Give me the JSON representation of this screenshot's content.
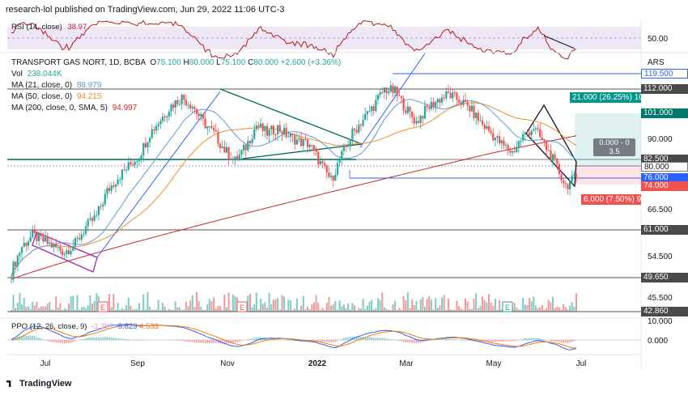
{
  "header": {
    "text": "research-lol published on TradingView.com, Jun 29, 2022 11:06 UTC-3"
  },
  "rsi": {
    "label": "RSI (14, close)",
    "value": "38.97",
    "level_label": "50.00",
    "color": "#b71c1c"
  },
  "main": {
    "symbol": "TRANSPORT GAS NORT, 1D, BCBA",
    "ohlc": {
      "o_label": "O",
      "o": "75.100",
      "h_label": "H",
      "h": "80.000",
      "l_label": "L",
      "l": "75.100",
      "c_label": "C",
      "c": "80.000",
      "chg": "+2.600 (+3.36%)"
    },
    "vol": {
      "label": "Vol",
      "value": "238.044K",
      "color": "#26a69a"
    },
    "ma21": {
      "label": "MA (21, close, 0)",
      "value": "88.979",
      "color": "#5b9bd5"
    },
    "ma50": {
      "label": "MA (50, close, 0)",
      "value": "94.215",
      "color": "#f28c28"
    },
    "ma200": {
      "label": "MA (200, close, 0, SMA, 5)",
      "value": "94.997",
      "color": "#c62828"
    },
    "currency": "ARS"
  },
  "price_axis": {
    "ticks": [
      "90.000",
      "66.500",
      "54.500",
      "45.500"
    ],
    "levels": [
      {
        "value": "119.500",
        "style": "blue"
      },
      {
        "value": "112.000",
        "style": "dark"
      },
      {
        "value": "101.000",
        "style": "teal"
      },
      {
        "value": "82.500",
        "style": "dark"
      },
      {
        "value": "80.000",
        "style": "outline"
      },
      {
        "value": "76.000",
        "style": "blue"
      },
      {
        "value": "74.000",
        "style": "red"
      },
      {
        "value": "61.000",
        "style": "dark"
      },
      {
        "value": "49.650",
        "style": "dark"
      },
      {
        "value": "42.860",
        "style": "dark"
      }
    ]
  },
  "position_tool": {
    "target_label": "21.000 (26.25%) 100",
    "stop_label": "6.000 (7.50%) 99",
    "ratio_line1": "0.000 - 0",
    "ratio_line2": "3.5"
  },
  "ppo": {
    "label": "PPO (12, 26, close, 9)",
    "v1": "-1.297",
    "v2": "-5.829",
    "v3": "4.533",
    "axis": [
      "10.000",
      "0.000"
    ]
  },
  "time_axis": {
    "labels": [
      "Jul",
      "Sep",
      "Nov",
      "2022",
      "Mar",
      "May",
      "Jul"
    ]
  },
  "earnings_marker": "E",
  "brand": "TradingView",
  "chart_data": {
    "type": "candlestick",
    "x_range": [
      "2021-06-20",
      "2022-06-29"
    ],
    "y_axis": {
      "min": 42.86,
      "max": 119.5,
      "unit": "ARS"
    },
    "close_path": [
      {
        "date": "2021-06-21",
        "close": 46
      },
      {
        "date": "2021-06-28",
        "close": 55
      },
      {
        "date": "2021-07-05",
        "close": 59
      },
      {
        "date": "2021-07-12",
        "close": 57
      },
      {
        "date": "2021-07-19",
        "close": 55
      },
      {
        "date": "2021-07-26",
        "close": 53
      },
      {
        "date": "2021-08-02",
        "close": 56
      },
      {
        "date": "2021-08-09",
        "close": 62
      },
      {
        "date": "2021-08-16",
        "close": 66
      },
      {
        "date": "2021-08-23",
        "close": 75
      },
      {
        "date": "2021-08-30",
        "close": 80
      },
      {
        "date": "2021-09-06",
        "close": 84
      },
      {
        "date": "2021-09-13",
        "close": 88
      },
      {
        "date": "2021-09-20",
        "close": 96
      },
      {
        "date": "2021-09-27",
        "close": 101
      },
      {
        "date": "2021-10-04",
        "close": 106
      },
      {
        "date": "2021-10-11",
        "close": 109
      },
      {
        "date": "2021-10-18",
        "close": 106
      },
      {
        "date": "2021-10-25",
        "close": 100
      },
      {
        "date": "2021-11-01",
        "close": 96
      },
      {
        "date": "2021-11-08",
        "close": 90
      },
      {
        "date": "2021-11-15",
        "close": 86
      },
      {
        "date": "2021-11-22",
        "close": 91
      },
      {
        "date": "2021-11-29",
        "close": 99
      },
      {
        "date": "2021-12-06",
        "close": 96
      },
      {
        "date": "2021-12-13",
        "close": 98
      },
      {
        "date": "2021-12-20",
        "close": 95
      },
      {
        "date": "2021-12-27",
        "close": 93
      },
      {
        "date": "2022-01-03",
        "close": 92
      },
      {
        "date": "2022-01-10",
        "close": 85
      },
      {
        "date": "2022-01-17",
        "close": 79
      },
      {
        "date": "2022-01-24",
        "close": 88
      },
      {
        "date": "2022-01-31",
        "close": 96
      },
      {
        "date": "2022-02-07",
        "close": 101
      },
      {
        "date": "2022-02-14",
        "close": 106
      },
      {
        "date": "2022-02-21",
        "close": 112
      },
      {
        "date": "2022-02-28",
        "close": 111
      },
      {
        "date": "2022-03-07",
        "close": 105
      },
      {
        "date": "2022-03-14",
        "close": 100
      },
      {
        "date": "2022-03-21",
        "close": 105
      },
      {
        "date": "2022-03-28",
        "close": 108
      },
      {
        "date": "2022-04-04",
        "close": 110
      },
      {
        "date": "2022-04-11",
        "close": 108
      },
      {
        "date": "2022-04-18",
        "close": 105
      },
      {
        "date": "2022-04-25",
        "close": 100
      },
      {
        "date": "2022-05-02",
        "close": 96
      },
      {
        "date": "2022-05-09",
        "close": 92
      },
      {
        "date": "2022-05-16",
        "close": 89
      },
      {
        "date": "2022-05-23",
        "close": 95
      },
      {
        "date": "2022-05-30",
        "close": 98
      },
      {
        "date": "2022-06-06",
        "close": 92
      },
      {
        "date": "2022-06-13",
        "close": 85
      },
      {
        "date": "2022-06-20",
        "close": 77
      },
      {
        "date": "2022-06-27",
        "close": 80
      }
    ]
  }
}
